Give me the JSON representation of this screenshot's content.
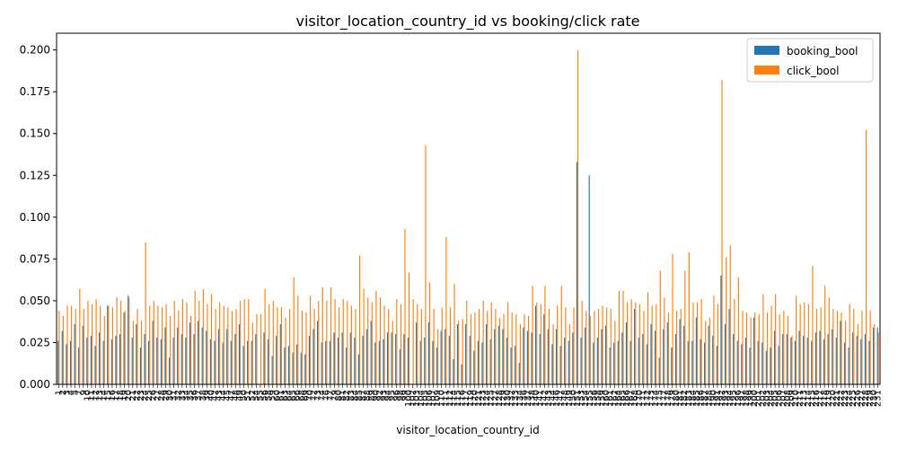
{
  "chart_data": {
    "type": "bar",
    "title": "visitor_location_country_id vs booking/click rate",
    "x_label": "visitor_location_country_id",
    "categories": [
      1,
      2,
      3,
      4,
      5,
      7,
      9,
      10,
      11,
      12,
      13,
      14,
      15,
      16,
      17,
      18,
      19,
      20,
      21,
      22,
      23,
      24,
      25,
      26,
      27,
      28,
      29,
      30,
      31,
      32,
      33,
      34,
      35,
      36,
      37,
      38,
      39,
      40,
      42,
      43,
      44,
      45,
      47,
      48,
      49,
      50,
      51,
      52,
      54,
      55,
      56,
      58,
      59,
      60,
      61,
      63,
      64,
      65,
      66,
      68,
      69,
      70,
      72,
      73,
      74,
      76,
      77,
      79,
      80,
      81,
      82,
      83,
      84,
      85,
      87,
      88,
      89,
      90,
      92,
      93,
      94,
      95,
      96,
      98,
      99,
      100,
      102,
      103,
      104,
      105,
      106,
      107,
      109,
      110,
      111,
      112,
      114,
      115,
      116,
      117,
      119,
      120,
      121,
      123,
      124,
      125,
      127,
      128,
      129,
      130,
      132,
      133,
      134,
      136,
      137,
      138,
      140,
      141,
      142,
      143,
      144,
      146,
      147,
      148,
      149,
      150,
      151,
      153,
      154,
      155,
      156,
      158,
      159,
      160,
      161,
      162,
      164,
      165,
      166,
      167,
      168,
      170,
      171,
      172,
      173,
      174,
      175,
      177,
      178,
      179,
      180,
      181,
      182,
      183,
      184,
      185,
      186,
      187,
      188,
      190,
      191,
      192,
      193,
      194,
      195,
      196,
      197,
      198,
      199,
      200,
      201,
      202,
      203,
      204,
      205,
      206,
      207,
      208,
      209,
      210,
      211,
      213,
      214,
      215,
      216,
      217,
      218,
      219,
      220,
      221,
      222,
      223,
      224,
      225,
      226,
      227,
      228,
      229,
      230,
      231
    ],
    "series": [
      {
        "name": "booking_bool",
        "color": "#1f77b4",
        "values": [
          0.026,
          0.032,
          0.024,
          0.026,
          0.036,
          0.022,
          0.035,
          0.028,
          0.029,
          0.023,
          0.031,
          0.026,
          0.047,
          0.027,
          0.029,
          0.03,
          0.043,
          0.053,
          0.028,
          0.036,
          0.022,
          0.03,
          0.026,
          0.038,
          0.028,
          0.027,
          0.034,
          0.016,
          0.028,
          0.034,
          0.03,
          0.028,
          0.037,
          0.03,
          0.038,
          0.034,
          0.032,
          0.027,
          0.026,
          0.033,
          0.025,
          0.033,
          0.026,
          0.03,
          0.036,
          0.023,
          0.026,
          0.026,
          0.03,
          0.0,
          0.031,
          0.027,
          0.017,
          0.029,
          0.036,
          0.022,
          0.023,
          0.019,
          0.024,
          0.019,
          0.018,
          0.029,
          0.033,
          0.038,
          0.025,
          0.026,
          0.026,
          0.031,
          0.028,
          0.031,
          0.022,
          0.031,
          0.028,
          0.018,
          0.029,
          0.033,
          0.038,
          0.025,
          0.026,
          0.027,
          0.031,
          0.031,
          0.03,
          0.021,
          0.03,
          0.028,
          0.0,
          0.037,
          0.026,
          0.028,
          0.037,
          0.026,
          0.022,
          0.032,
          0.033,
          0.029,
          0.015,
          0.036,
          0.012,
          0.036,
          0.029,
          0.02,
          0.026,
          0.025,
          0.036,
          0.027,
          0.033,
          0.035,
          0.033,
          0.028,
          0.022,
          0.023,
          0.013,
          0.034,
          0.032,
          0.031,
          0.047,
          0.03,
          0.042,
          0.033,
          0.024,
          0.033,
          0.023,
          0.028,
          0.026,
          0.031,
          0.133,
          0.028,
          0.034,
          0.125,
          0.025,
          0.028,
          0.033,
          0.035,
          0.022,
          0.025,
          0.026,
          0.031,
          0.037,
          0.026,
          0.045,
          0.028,
          0.03,
          0.024,
          0.036,
          0.032,
          0.016,
          0.033,
          0.037,
          0.022,
          0.03,
          0.039,
          0.035,
          0.026,
          0.026,
          0.04,
          0.027,
          0.025,
          0.035,
          0.029,
          0.023,
          0.065,
          0.036,
          0.045,
          0.03,
          0.026,
          0.024,
          0.028,
          0.022,
          0.04,
          0.026,
          0.025,
          0.02,
          0.022,
          0.032,
          0.023,
          0.03,
          0.03,
          0.028,
          0.026,
          0.032,
          0.029,
          0.028,
          0.026,
          0.031,
          0.032,
          0.027,
          0.03,
          0.033,
          0.028,
          0.038,
          0.025,
          0.022,
          0.031,
          0.029,
          0.027,
          0.03,
          0.026,
          0.034,
          0.034
        ]
      },
      {
        "name": "click_bool",
        "color": "#ff7f0e",
        "values": [
          0.044,
          0.041,
          0.047,
          0.047,
          0.045,
          0.057,
          0.045,
          0.05,
          0.048,
          0.051,
          0.047,
          0.041,
          0.047,
          0.046,
          0.052,
          0.05,
          0.044,
          0.052,
          0.038,
          0.045,
          0.038,
          0.085,
          0.047,
          0.05,
          0.047,
          0.046,
          0.048,
          0.041,
          0.05,
          0.044,
          0.051,
          0.049,
          0.041,
          0.056,
          0.05,
          0.057,
          0.048,
          0.054,
          0.045,
          0.049,
          0.047,
          0.046,
          0.044,
          0.045,
          0.05,
          0.051,
          0.051,
          0.037,
          0.042,
          0.042,
          0.057,
          0.048,
          0.05,
          0.046,
          0.046,
          0.04,
          0.045,
          0.064,
          0.053,
          0.044,
          0.043,
          0.053,
          0.045,
          0.05,
          0.058,
          0.05,
          0.058,
          0.051,
          0.046,
          0.051,
          0.05,
          0.047,
          0.045,
          0.077,
          0.057,
          0.052,
          0.049,
          0.056,
          0.052,
          0.047,
          0.045,
          0.038,
          0.051,
          0.048,
          0.093,
          0.067,
          0.051,
          0.048,
          0.045,
          0.143,
          0.061,
          0.045,
          0.033,
          0.046,
          0.088,
          0.046,
          0.06,
          0.038,
          0.039,
          0.05,
          0.042,
          0.043,
          0.045,
          0.05,
          0.044,
          0.049,
          0.045,
          0.04,
          0.042,
          0.049,
          0.043,
          0.042,
          0.036,
          0.042,
          0.041,
          0.059,
          0.049,
          0.048,
          0.059,
          0.045,
          0.036,
          0.047,
          0.059,
          0.046,
          0.036,
          0.046,
          0.2,
          0.05,
          0.044,
          0.041,
          0.044,
          0.045,
          0.047,
          0.046,
          0.045,
          0.038,
          0.056,
          0.056,
          0.049,
          0.051,
          0.049,
          0.048,
          0.044,
          0.055,
          0.047,
          0.048,
          0.068,
          0.052,
          0.043,
          0.078,
          0.044,
          0.045,
          0.068,
          0.079,
          0.049,
          0.049,
          0.051,
          0.038,
          0.04,
          0.053,
          0.048,
          0.182,
          0.076,
          0.083,
          0.051,
          0.064,
          0.044,
          0.043,
          0.04,
          0.043,
          0.042,
          0.054,
          0.043,
          0.047,
          0.054,
          0.042,
          0.044,
          0.041,
          0.029,
          0.053,
          0.048,
          0.049,
          0.048,
          0.071,
          0.045,
          0.046,
          0.059,
          0.052,
          0.045,
          0.044,
          0.043,
          0.038,
          0.048,
          0.045,
          0.036,
          0.044,
          0.152,
          0.044,
          0.036,
          0.031
        ]
      }
    ],
    "ylim": [
      0,
      0.21
    ],
    "yticks": [
      {
        "value": 0,
        "label": "0.000"
      },
      {
        "value": 0.025,
        "label": "0.025"
      },
      {
        "value": 0.05,
        "label": "0.050"
      },
      {
        "value": 0.075,
        "label": "0.075"
      },
      {
        "value": 0.1,
        "label": "0.100"
      },
      {
        "value": 0.125,
        "label": "0.125"
      },
      {
        "value": 0.15,
        "label": "0.150"
      },
      {
        "value": 0.175,
        "label": "0.175"
      },
      {
        "value": 0.2,
        "label": "0.200"
      }
    ],
    "legend": "upper right"
  }
}
